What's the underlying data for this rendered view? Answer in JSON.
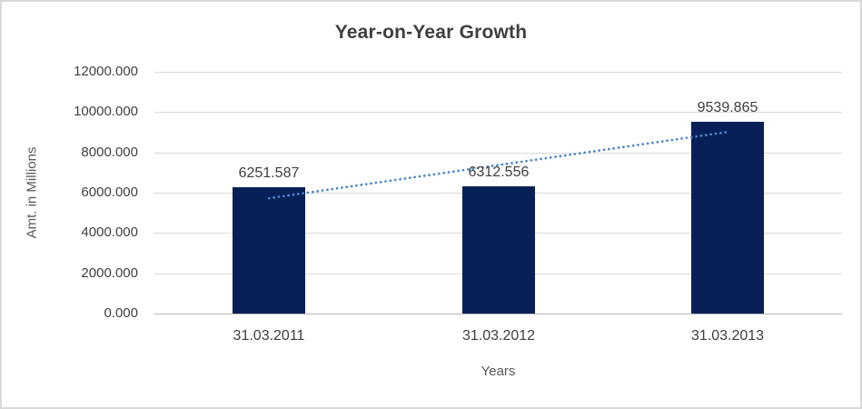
{
  "chart_data": {
    "type": "bar",
    "title": "Year-on-Year Growth",
    "xlabel": "Years",
    "ylabel": "Amt. in Millions",
    "categories": [
      "31.03.2011",
      "31.03.2012",
      "31.03.2013"
    ],
    "values": [
      6251.587,
      6312.556,
      9539.865
    ],
    "value_labels": [
      "6251.587",
      "6312.556",
      "9539.865"
    ],
    "y_tick_labels": [
      "12000.000",
      "10000.000",
      "8000.000",
      "6000.000",
      "4000.000",
      "2000.000",
      "0.000"
    ],
    "ylim": [
      0,
      12000
    ],
    "grid": true,
    "legend": "none",
    "trendline": {
      "type": "linear",
      "style": "dotted"
    },
    "colors": {
      "bar": "#082058",
      "trendline": "#4a87ca",
      "gridline": "#d9d9d9",
      "baseline": "#b7b7b7",
      "title_text": "#3f3f3f",
      "label_text": "#404040",
      "axis_title_text": "#595959",
      "background": "#ffffff",
      "border": "#d9d9d9"
    }
  }
}
